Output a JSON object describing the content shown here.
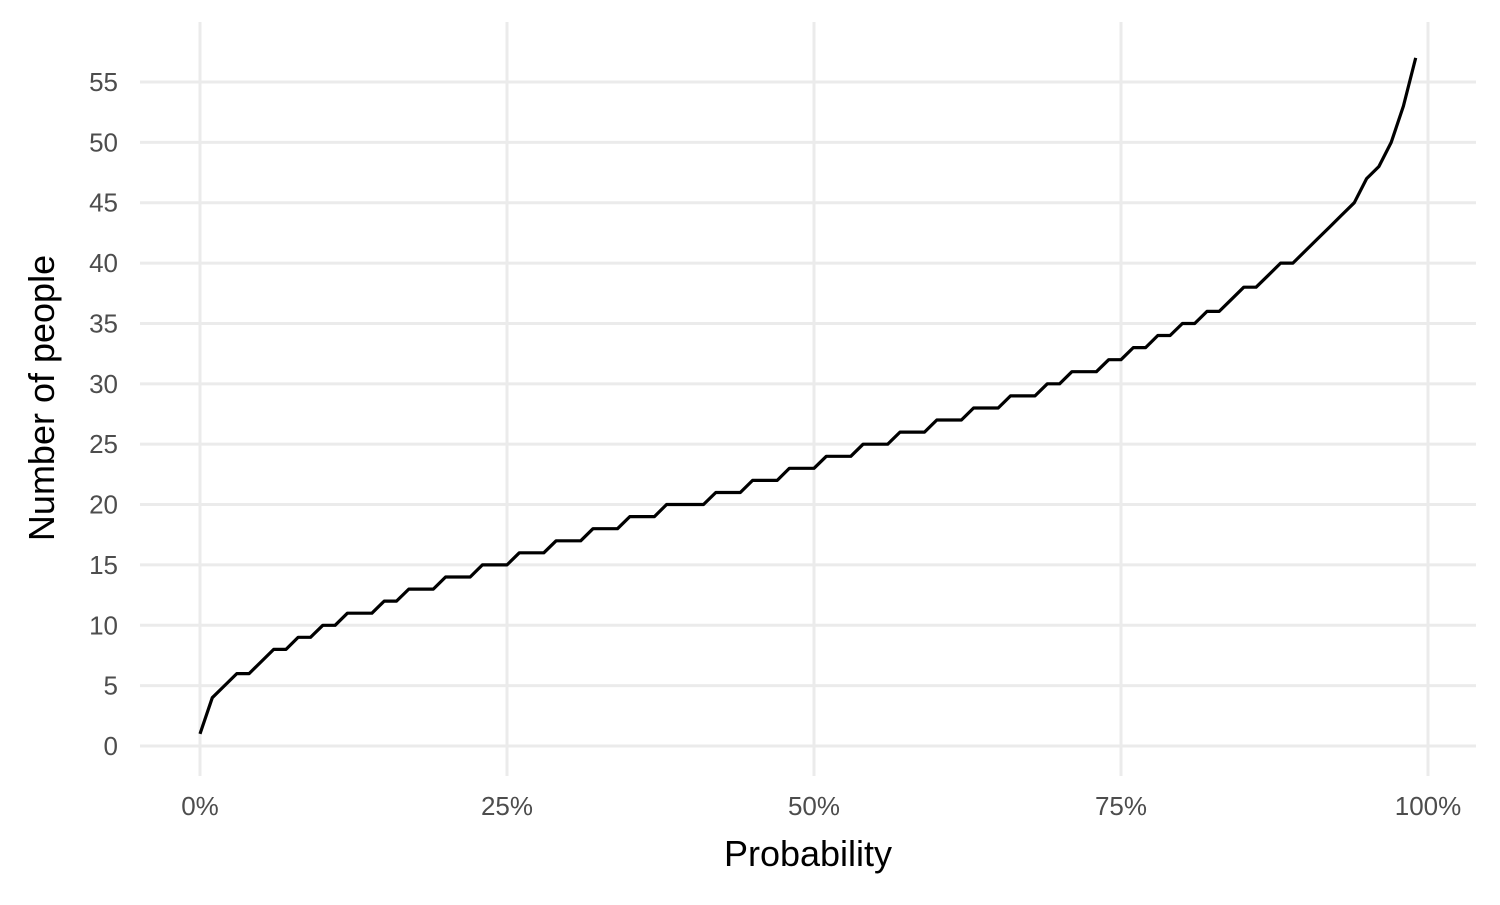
{
  "chart_data": {
    "type": "line",
    "title": "",
    "xlabel": "Probability",
    "ylabel": "Number of people",
    "xlim": [
      0,
      1
    ],
    "ylim": [
      0,
      57
    ],
    "x_ticks": [
      0,
      0.25,
      0.5,
      0.75,
      1
    ],
    "x_tick_labels": [
      "0%",
      "25%",
      "50%",
      "75%",
      "100%"
    ],
    "y_ticks": [
      0,
      5,
      10,
      15,
      20,
      25,
      30,
      35,
      40,
      45,
      50,
      55
    ],
    "y_tick_labels": [
      "0",
      "5",
      "10",
      "15",
      "20",
      "25",
      "30",
      "35",
      "40",
      "45",
      "50",
      "55"
    ],
    "grid": true,
    "line_color": "#000000",
    "grid_color": "#ebebeb",
    "series": [
      {
        "x": [
          0,
          0.01,
          0.02,
          0.03,
          0.04,
          0.05,
          0.06,
          0.07,
          0.08,
          0.09,
          0.1,
          0.11,
          0.12,
          0.13,
          0.14,
          0.15,
          0.16,
          0.17,
          0.18,
          0.19,
          0.2,
          0.21,
          0.22,
          0.23,
          0.24,
          0.25,
          0.26,
          0.27,
          0.28,
          0.29,
          0.3,
          0.31,
          0.32,
          0.33,
          0.34,
          0.35,
          0.36,
          0.37,
          0.38,
          0.39,
          0.4,
          0.41,
          0.42,
          0.43,
          0.44,
          0.45,
          0.46,
          0.47,
          0.48,
          0.49,
          0.5,
          0.51,
          0.52,
          0.53,
          0.54,
          0.55,
          0.56,
          0.57,
          0.58,
          0.59,
          0.6,
          0.61,
          0.62,
          0.63,
          0.64,
          0.65,
          0.66,
          0.67,
          0.68,
          0.69,
          0.7,
          0.71,
          0.72,
          0.73,
          0.74,
          0.75,
          0.76,
          0.77,
          0.78,
          0.79,
          0.8,
          0.81,
          0.82,
          0.83,
          0.84,
          0.85,
          0.86,
          0.87,
          0.88,
          0.89,
          0.9,
          0.91,
          0.92,
          0.93,
          0.94,
          0.95,
          0.96,
          0.97,
          0.98,
          0.99
        ],
        "y": [
          1,
          4,
          5,
          6,
          6,
          7,
          8,
          8,
          9,
          9,
          10,
          10,
          11,
          11,
          11,
          12,
          12,
          13,
          13,
          13,
          14,
          14,
          14,
          15,
          15,
          15,
          16,
          16,
          16,
          17,
          17,
          17,
          18,
          18,
          18,
          19,
          19,
          19,
          20,
          20,
          20,
          20,
          21,
          21,
          21,
          22,
          22,
          22,
          23,
          23,
          23,
          24,
          24,
          24,
          25,
          25,
          25,
          26,
          26,
          26,
          27,
          27,
          27,
          28,
          28,
          28,
          29,
          29,
          29,
          30,
          30,
          31,
          31,
          31,
          32,
          32,
          33,
          33,
          34,
          34,
          35,
          35,
          36,
          36,
          37,
          38,
          38,
          39,
          40,
          40,
          41,
          42,
          43,
          44,
          45,
          47,
          48,
          50,
          53,
          57
        ]
      }
    ]
  }
}
